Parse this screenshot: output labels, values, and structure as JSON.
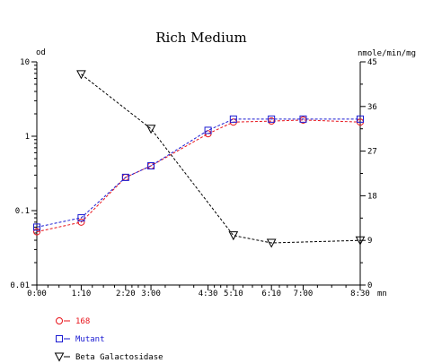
{
  "chart_data": {
    "type": "line",
    "title": "Rich Medium",
    "left_axis_unit": "od",
    "right_axis_unit": "nmole/min/mg",
    "x_unit": "mn",
    "categories": [
      "0:00",
      "1:10",
      "2:20",
      "3:00",
      "4:30",
      "5:10",
      "6:10",
      "7:00",
      "8:30"
    ],
    "x_minutes": [
      0,
      70,
      140,
      180,
      270,
      310,
      370,
      420,
      510
    ],
    "left_axis": {
      "scale": "log",
      "ylim": [
        0.01,
        10
      ],
      "ticks": [
        "0.01",
        "0.1",
        "1",
        "10"
      ],
      "tick_values": [
        0.01,
        0.1,
        1,
        10
      ]
    },
    "right_axis": {
      "scale": "linear",
      "ylim": [
        0,
        45
      ],
      "ticks": [
        "0",
        "9",
        "18",
        "27",
        "36",
        "45"
      ],
      "tick_values": [
        0,
        9,
        18,
        27,
        36,
        45
      ]
    },
    "grid": false,
    "legend_position": "bottom-left",
    "series": [
      {
        "name": "168",
        "axis": "left",
        "marker": "circle",
        "color": "#e8131a",
        "values": [
          0.052,
          0.07,
          0.28,
          0.4,
          1.08,
          1.55,
          1.6,
          1.65,
          1.55
        ]
      },
      {
        "name": "Mutant",
        "axis": "left",
        "marker": "square",
        "color": "#1a1ad2",
        "values": [
          0.06,
          0.08,
          0.28,
          0.4,
          1.2,
          1.7,
          1.7,
          1.7,
          1.7
        ]
      },
      {
        "name": "Beta Galactosidase",
        "axis": "right",
        "marker": "triangle-down",
        "color": "#000000",
        "values": [
          null,
          42.5,
          null,
          31.5,
          null,
          10,
          8.5,
          null,
          9
        ]
      }
    ]
  }
}
